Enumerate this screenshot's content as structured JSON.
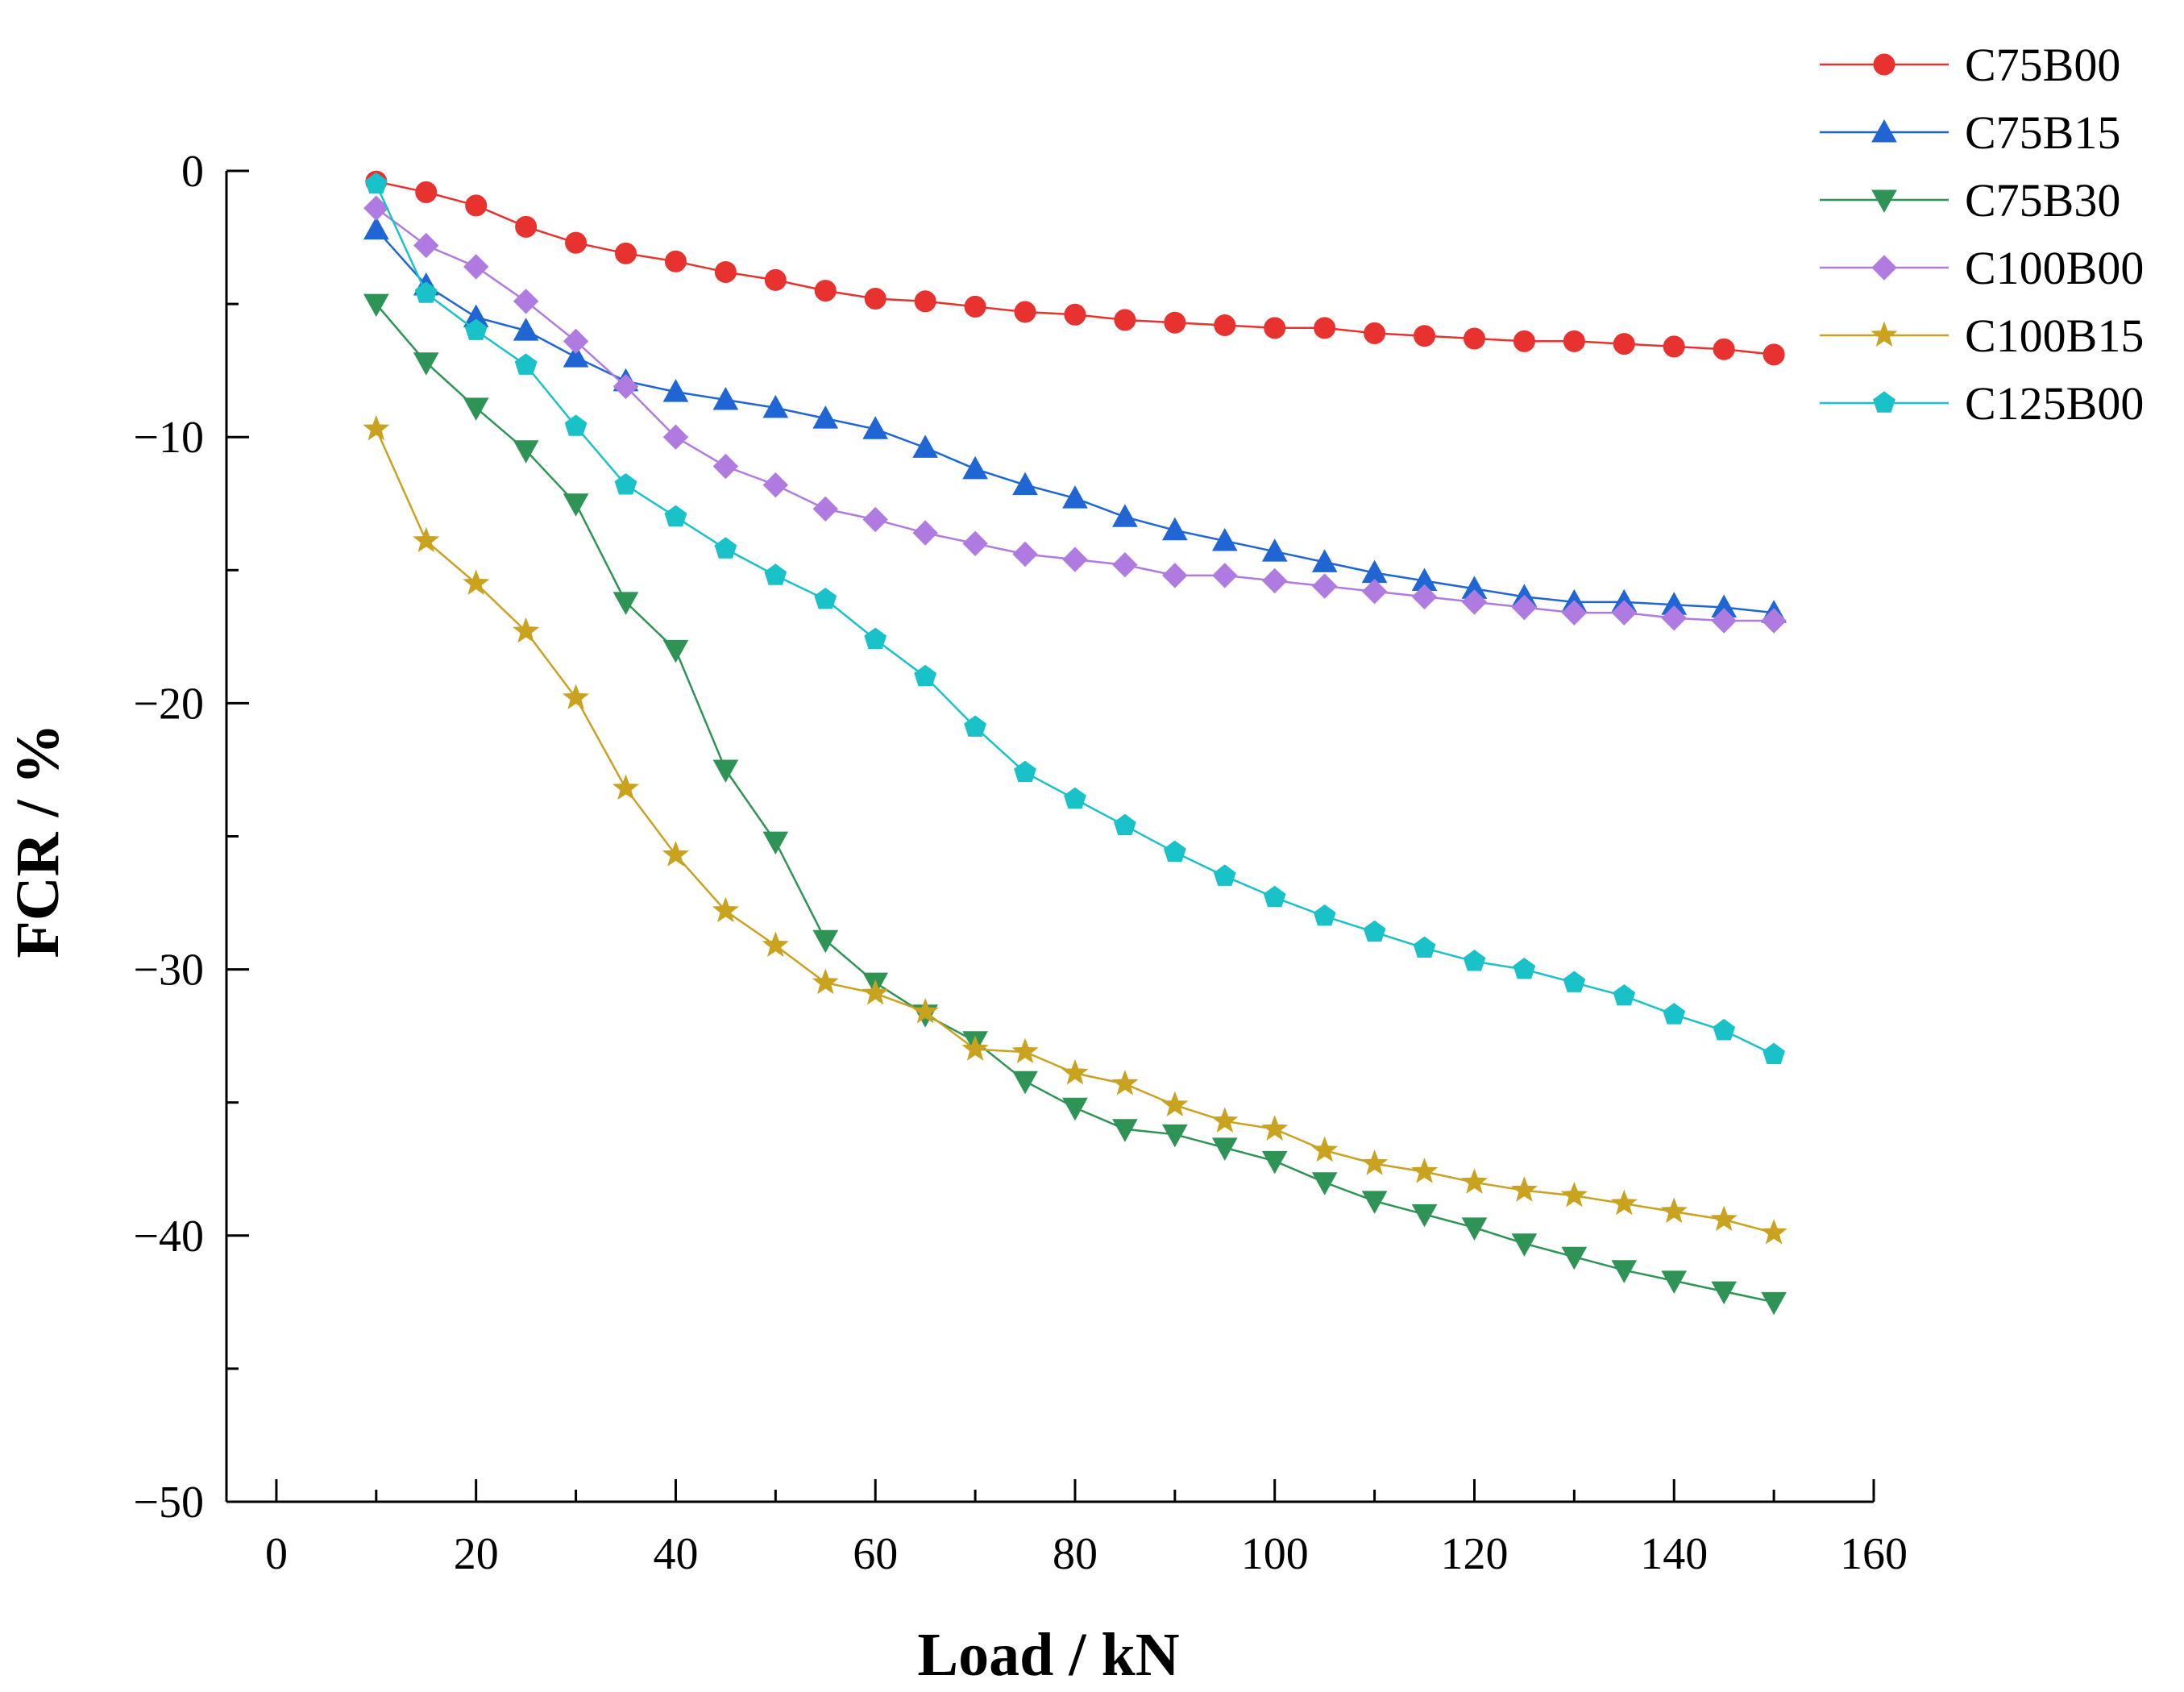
{
  "chart_data": {
    "type": "line",
    "title": "",
    "xlabel": "Load / kN",
    "ylabel": "FCR / %",
    "xlim": [
      -5,
      160
    ],
    "ylim": [
      -50,
      0
    ],
    "xticks": [
      0,
      20,
      40,
      60,
      80,
      100,
      120,
      140,
      160
    ],
    "xtick_labels": [
      "0",
      "20",
      "40",
      "60",
      "80",
      "100",
      "120",
      "140",
      "160"
    ],
    "yticks": [
      0,
      -10,
      -20,
      -30,
      -40,
      -50
    ],
    "ytick_labels": [
      "0",
      "−10",
      "−20",
      "−30",
      "−40",
      "−50"
    ],
    "grid": false,
    "legend_position": "top-right",
    "x": [
      10,
      15,
      20,
      25,
      30,
      35,
      40,
      45,
      50,
      55,
      60,
      65,
      70,
      75,
      80,
      85,
      90,
      95,
      100,
      105,
      110,
      115,
      120,
      125,
      130,
      135,
      140,
      145,
      150
    ],
    "series": [
      {
        "name": "C75B00",
        "color": "#e8322f",
        "marker": "circle",
        "values": [
          -0.4,
          -0.8,
          -1.3,
          -2.1,
          -2.7,
          -3.1,
          -3.4,
          -3.8,
          -4.1,
          -4.5,
          -4.8,
          -4.9,
          -5.1,
          -5.3,
          -5.4,
          -5.6,
          -5.7,
          -5.8,
          -5.9,
          -5.9,
          -6.1,
          -6.2,
          -6.3,
          -6.4,
          -6.4,
          -6.5,
          -6.6,
          -6.7,
          -6.9
        ]
      },
      {
        "name": "C75B15",
        "color": "#1f66d4",
        "marker": "triangle-up",
        "values": [
          -2.2,
          -4.3,
          -5.5,
          -6.0,
          -7.0,
          -7.9,
          -8.3,
          -8.6,
          -8.9,
          -9.3,
          -9.7,
          -10.4,
          -11.2,
          -11.8,
          -12.3,
          -13.0,
          -13.5,
          -13.9,
          -14.3,
          -14.7,
          -15.1,
          -15.4,
          -15.7,
          -16.0,
          -16.2,
          -16.2,
          -16.3,
          -16.4,
          -16.6
        ]
      },
      {
        "name": "C75B30",
        "color": "#2e9456",
        "marker": "triangle-down",
        "values": [
          -5.0,
          -7.2,
          -8.9,
          -10.5,
          -12.5,
          -16.2,
          -18.0,
          -22.5,
          -25.2,
          -28.9,
          -30.5,
          -31.7,
          -32.7,
          -34.2,
          -35.2,
          -36.0,
          -36.2,
          -36.7,
          -37.2,
          -38.0,
          -38.7,
          -39.2,
          -39.7,
          -40.3,
          -40.8,
          -41.3,
          -41.7,
          -42.1,
          -42.5
        ]
      },
      {
        "name": "C100B00",
        "color": "#b07be0",
        "marker": "diamond",
        "values": [
          -1.4,
          -2.8,
          -3.6,
          -4.9,
          -6.4,
          -8.1,
          -10.0,
          -11.1,
          -11.8,
          -12.7,
          -13.1,
          -13.6,
          -14.0,
          -14.4,
          -14.6,
          -14.8,
          -15.2,
          -15.2,
          -15.4,
          -15.6,
          -15.8,
          -16.0,
          -16.2,
          -16.4,
          -16.6,
          -16.6,
          -16.8,
          -16.9,
          -16.9
        ]
      },
      {
        "name": "C100B15",
        "color": "#c9a21f",
        "marker": "star",
        "values": [
          -9.7,
          -13.9,
          -15.5,
          -17.3,
          -19.8,
          -23.2,
          -25.7,
          -27.8,
          -29.1,
          -30.5,
          -30.9,
          -31.6,
          -33.0,
          -33.1,
          -33.9,
          -34.3,
          -35.1,
          -35.7,
          -36.0,
          -36.8,
          -37.3,
          -37.6,
          -38.0,
          -38.3,
          -38.5,
          -38.8,
          -39.1,
          -39.4,
          -39.9
        ]
      },
      {
        "name": "C125B00",
        "color": "#19c1c8",
        "marker": "pentagon",
        "values": [
          -0.5,
          -4.6,
          -6.0,
          -7.3,
          -9.6,
          -11.8,
          -13.0,
          -14.2,
          -15.2,
          -16.1,
          -17.6,
          -19.0,
          -20.9,
          -22.6,
          -23.6,
          -24.6,
          -25.6,
          -26.5,
          -27.3,
          -28.0,
          -28.6,
          -29.2,
          -29.7,
          -30.0,
          -30.5,
          -31.0,
          -31.7,
          -32.3,
          -33.2
        ]
      }
    ]
  }
}
